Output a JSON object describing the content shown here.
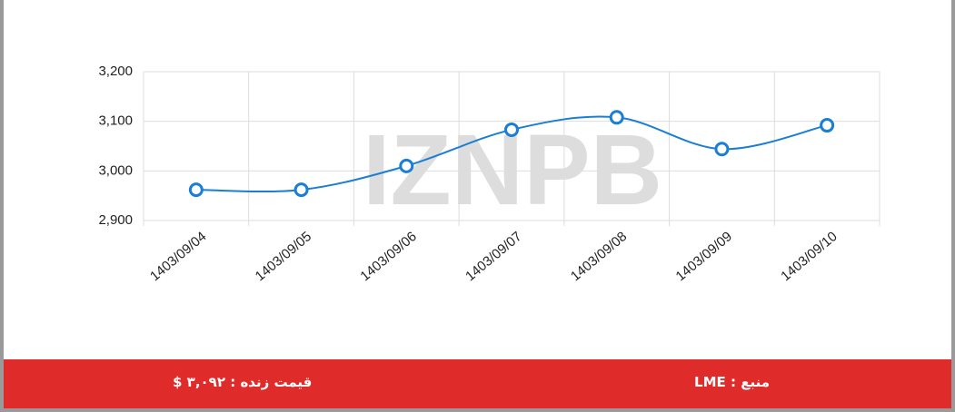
{
  "chart_data": {
    "type": "line",
    "categories": [
      "1403/09/04",
      "1403/09/05",
      "1403/09/06",
      "1403/09/07",
      "1403/09/08",
      "1403/09/09",
      "1403/09/10"
    ],
    "values": [
      2962,
      2962,
      3010,
      3083,
      3108,
      3044,
      3092
    ],
    "color": "#1a7fd4",
    "ylim": [
      2900,
      3200
    ],
    "yticks": [
      {
        "value": 2900,
        "label": "2,900"
      },
      {
        "value": 3000,
        "label": "3,000"
      },
      {
        "value": 3100,
        "label": "3,100"
      },
      {
        "value": 3200,
        "label": "3,200"
      }
    ],
    "grid": true,
    "watermark": "IZNPB"
  },
  "footer": {
    "source": "منبع : LME",
    "live_price": "قیمت زنده : ۳,۰۹۲ $"
  }
}
